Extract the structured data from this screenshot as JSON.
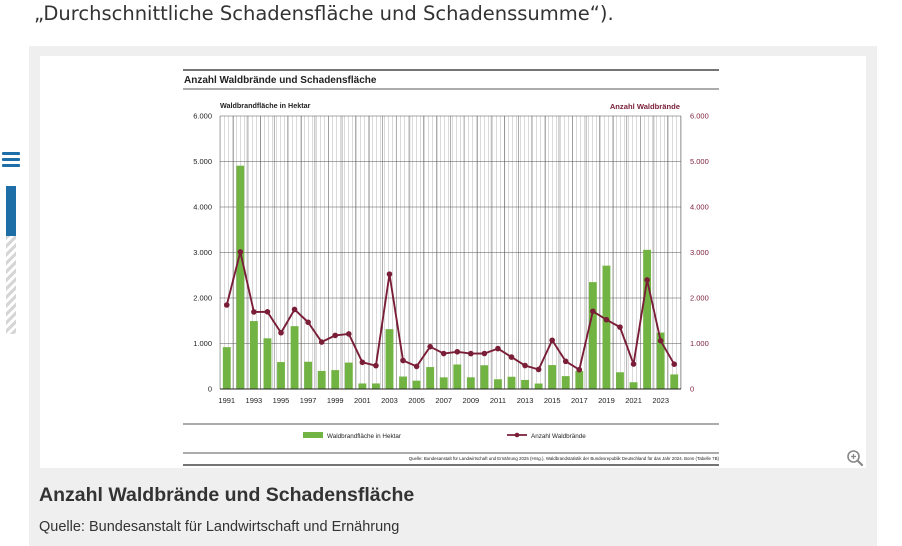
{
  "intro_text": "„Durchschnittliche Schadensfläche und Schadenssumme“).",
  "figure": {
    "caption_title": "Anzahl Waldbrände und Schadensfläche",
    "caption_source": "Quelle: Bundesanstalt für Landwirtschaft und Ernährung"
  },
  "colors": {
    "bar": "#72b443",
    "line": "#7a1e38",
    "accent": "#1e6fa8"
  },
  "icons": {
    "menu": "hamburger-icon",
    "zoom": "zoom-icon"
  },
  "chart_data": {
    "type": "bar",
    "title": "Anzahl Waldbrände und Schadensfläche",
    "left_axis_label": "Waldbrandfläche in Hektar",
    "right_axis_label": "Anzahl Waldbrände",
    "left_ticks": [
      "6.000",
      "5.000",
      "4.000",
      "3.000",
      "2.000",
      "1.000",
      "0"
    ],
    "right_ticks": [
      "6.000",
      "5.000",
      "4.000",
      "3.000",
      "2.000",
      "1.000",
      "0"
    ],
    "ylim": [
      0,
      6000
    ],
    "x": [
      1991,
      1992,
      1993,
      1994,
      1995,
      1996,
      1997,
      1998,
      1999,
      2000,
      2001,
      2002,
      2003,
      2004,
      2005,
      2006,
      2007,
      2008,
      2009,
      2010,
      2011,
      2012,
      2013,
      2014,
      2015,
      2016,
      2017,
      2018,
      2019,
      2020,
      2021,
      2022,
      2023,
      2024
    ],
    "x_tick_labels": [
      "1991",
      "1993",
      "1995",
      "1997",
      "1999",
      "2001",
      "2003",
      "2005",
      "2007",
      "2009",
      "2011",
      "2013",
      "2015",
      "2017",
      "2019",
      "2021",
      "2023"
    ],
    "series": [
      {
        "name": "Waldbrandfläche in Hektar",
        "type": "bar",
        "values": [
          920,
          4908,
          1493,
          1114,
          592,
          1381,
          599,
          397,
          415,
          581,
          122,
          122,
          1315,
          274,
          183,
          482,
          256,
          539,
          257,
          522,
          214,
          269,
          199,
          120,
          526,
          283,
          395,
          2349,
          2711,
          368,
          148,
          3058,
          1240,
          320
        ]
      },
      {
        "name": "Anzahl Waldbrände",
        "type": "line",
        "values": [
          1846,
          3012,
          1694,
          1696,
          1237,
          1748,
          1467,
          1032,
          1178,
          1210,
          587,
          513,
          2524,
          626,
          496,
          930,
          779,
          818,
          778,
          780,
          888,
          701,
          515,
          429,
          1071,
          608,
          424,
          1708,
          1523,
          1360,
          548,
          2397,
          1059,
          545
        ]
      }
    ],
    "grid": true,
    "legend_position": "bottom",
    "source_note": "Quelle: Bundesanstalt für Landwirtschaft und Ernährung 2025 (Hrsg.), Waldbrandstatistik der Bundesrepublik Deutschland für das Jahr 2024. Bonn (Tabelle 7B)"
  }
}
